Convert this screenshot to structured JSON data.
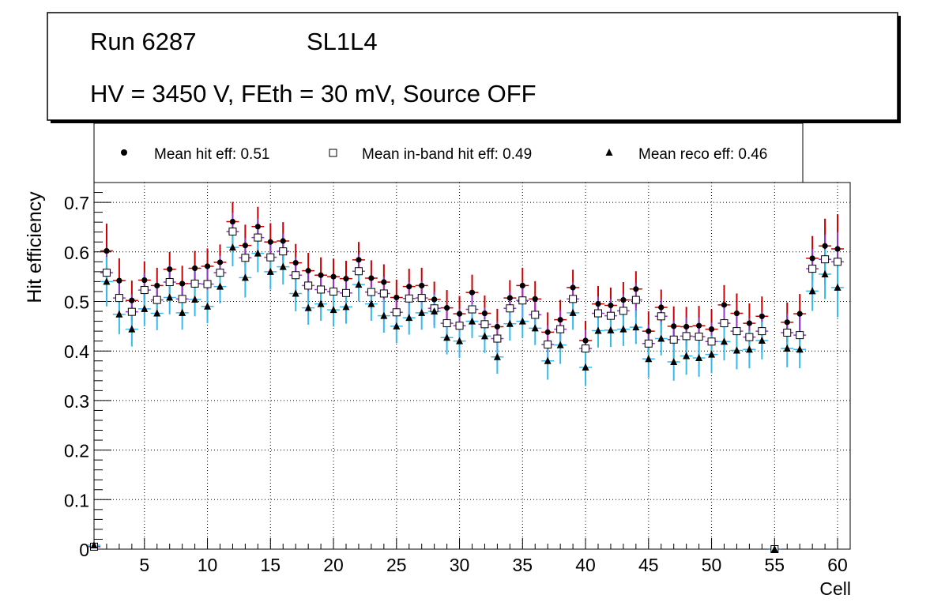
{
  "chart_data": {
    "type": "scatter",
    "title": {
      "run": "Run 6287",
      "layer": "SL1L4",
      "conditions": "HV = 3450 V, FEth = 30 mV, Source OFF"
    },
    "xlabel": "Cell",
    "ylabel": "Hit efficiency",
    "xlim": [
      1,
      61
    ],
    "ylim": [
      0,
      0.74
    ],
    "xticks": [
      5,
      10,
      15,
      20,
      25,
      30,
      35,
      40,
      45,
      50,
      55,
      60
    ],
    "yticks": [
      0,
      0.1,
      0.2,
      0.3,
      0.4,
      0.5,
      0.6,
      0.7
    ],
    "ytick_labels": [
      "0",
      "0.1",
      "0.2",
      "0.3",
      "0.4",
      "0.5",
      "0.6",
      "0.7"
    ],
    "grid": true,
    "legend_position": "top",
    "cells": [
      1,
      2,
      3,
      4,
      5,
      6,
      7,
      8,
      9,
      10,
      11,
      12,
      13,
      14,
      15,
      16,
      17,
      18,
      19,
      20,
      21,
      22,
      23,
      24,
      25,
      26,
      27,
      28,
      29,
      30,
      31,
      32,
      33,
      34,
      35,
      36,
      37,
      38,
      39,
      40,
      41,
      42,
      43,
      44,
      45,
      46,
      47,
      48,
      49,
      50,
      51,
      52,
      53,
      54,
      55,
      56,
      57,
      58,
      59,
      60
    ],
    "series": [
      {
        "name": "Mean hit  eff: 0.51",
        "marker": "circle",
        "color": "#000000",
        "errorbar_color": "#cc0000",
        "values": [
          0.005,
          0.602,
          0.542,
          0.502,
          0.543,
          0.532,
          0.565,
          0.536,
          0.567,
          0.571,
          0.579,
          0.661,
          0.613,
          0.651,
          0.62,
          0.622,
          0.578,
          0.562,
          0.553,
          0.55,
          0.546,
          0.584,
          0.547,
          0.539,
          0.508,
          0.53,
          0.532,
          0.504,
          0.487,
          0.475,
          0.518,
          0.476,
          0.449,
          0.507,
          0.532,
          0.505,
          0.438,
          0.463,
          0.528,
          0.421,
          0.495,
          0.492,
          0.503,
          0.525,
          0.44,
          0.488,
          0.45,
          0.449,
          0.451,
          0.444,
          0.493,
          0.476,
          0.456,
          0.47,
          0.0,
          0.458,
          0.475,
          0.587,
          0.612,
          0.606
        ],
        "errors": [
          0.0,
          0.055,
          0.045,
          0.04,
          0.038,
          0.036,
          0.035,
          0.036,
          0.035,
          0.036,
          0.036,
          0.04,
          0.042,
          0.04,
          0.038,
          0.038,
          0.038,
          0.036,
          0.036,
          0.036,
          0.036,
          0.036,
          0.036,
          0.036,
          0.036,
          0.036,
          0.036,
          0.036,
          0.036,
          0.036,
          0.036,
          0.036,
          0.036,
          0.036,
          0.036,
          0.036,
          0.04,
          0.04,
          0.036,
          0.04,
          0.036,
          0.036,
          0.036,
          0.036,
          0.04,
          0.036,
          0.04,
          0.04,
          0.04,
          0.04,
          0.04,
          0.04,
          0.04,
          0.04,
          0.0,
          0.04,
          0.04,
          0.045,
          0.055,
          0.07
        ]
      },
      {
        "name": "Mean in-band hit eff: 0.49",
        "marker": "open-square",
        "color": "#000000",
        "errorbar_color": "#9933cc",
        "values": [
          0.005,
          0.558,
          0.507,
          0.479,
          0.523,
          0.503,
          0.539,
          0.505,
          0.536,
          0.535,
          0.558,
          0.641,
          0.588,
          0.629,
          0.589,
          0.601,
          0.553,
          0.532,
          0.524,
          0.52,
          0.517,
          0.561,
          0.519,
          0.516,
          0.478,
          0.506,
          0.507,
          0.486,
          0.456,
          0.451,
          0.484,
          0.454,
          0.425,
          0.486,
          0.502,
          0.473,
          0.413,
          0.444,
          0.505,
          0.405,
          0.476,
          0.471,
          0.481,
          0.503,
          0.415,
          0.47,
          0.423,
          0.43,
          0.429,
          0.419,
          0.456,
          0.44,
          0.428,
          0.44,
          0.0,
          0.437,
          0.432,
          0.566,
          0.585,
          0.58
        ],
        "errors": [
          0.0,
          0.05,
          0.04,
          0.035,
          0.035,
          0.034,
          0.034,
          0.034,
          0.034,
          0.034,
          0.034,
          0.038,
          0.04,
          0.038,
          0.036,
          0.036,
          0.036,
          0.034,
          0.034,
          0.034,
          0.034,
          0.034,
          0.034,
          0.034,
          0.034,
          0.034,
          0.034,
          0.034,
          0.034,
          0.034,
          0.034,
          0.034,
          0.034,
          0.034,
          0.034,
          0.034,
          0.038,
          0.038,
          0.034,
          0.038,
          0.034,
          0.034,
          0.034,
          0.034,
          0.038,
          0.034,
          0.038,
          0.038,
          0.038,
          0.038,
          0.038,
          0.038,
          0.038,
          0.038,
          0.0,
          0.038,
          0.038,
          0.04,
          0.05,
          0.06
        ]
      },
      {
        "name": "Mean reco eff: 0.46",
        "marker": "triangle",
        "color": "#000000",
        "errorbar_color": "#33bbee",
        "values": [
          0.008,
          0.54,
          0.474,
          0.444,
          0.485,
          0.476,
          0.508,
          0.477,
          0.504,
          0.49,
          0.53,
          0.609,
          0.548,
          0.597,
          0.56,
          0.57,
          0.516,
          0.487,
          0.495,
          0.483,
          0.489,
          0.534,
          0.495,
          0.471,
          0.45,
          0.467,
          0.477,
          0.48,
          0.427,
          0.42,
          0.46,
          0.43,
          0.388,
          0.455,
          0.46,
          0.446,
          0.38,
          0.412,
          0.477,
          0.367,
          0.441,
          0.442,
          0.444,
          0.448,
          0.384,
          0.425,
          0.378,
          0.39,
          0.386,
          0.393,
          0.419,
          0.401,
          0.403,
          0.421,
          0.0,
          0.405,
          0.403,
          0.521,
          0.555,
          0.528
        ],
        "errors": [
          0.0,
          0.05,
          0.04,
          0.035,
          0.035,
          0.034,
          0.034,
          0.034,
          0.034,
          0.034,
          0.034,
          0.038,
          0.04,
          0.038,
          0.036,
          0.036,
          0.036,
          0.034,
          0.034,
          0.034,
          0.034,
          0.034,
          0.034,
          0.034,
          0.034,
          0.034,
          0.034,
          0.034,
          0.034,
          0.034,
          0.034,
          0.034,
          0.034,
          0.034,
          0.034,
          0.034,
          0.038,
          0.038,
          0.034,
          0.038,
          0.034,
          0.034,
          0.034,
          0.034,
          0.038,
          0.034,
          0.038,
          0.038,
          0.038,
          0.038,
          0.038,
          0.038,
          0.038,
          0.038,
          0.0,
          0.038,
          0.038,
          0.04,
          0.05,
          0.06
        ]
      }
    ]
  }
}
